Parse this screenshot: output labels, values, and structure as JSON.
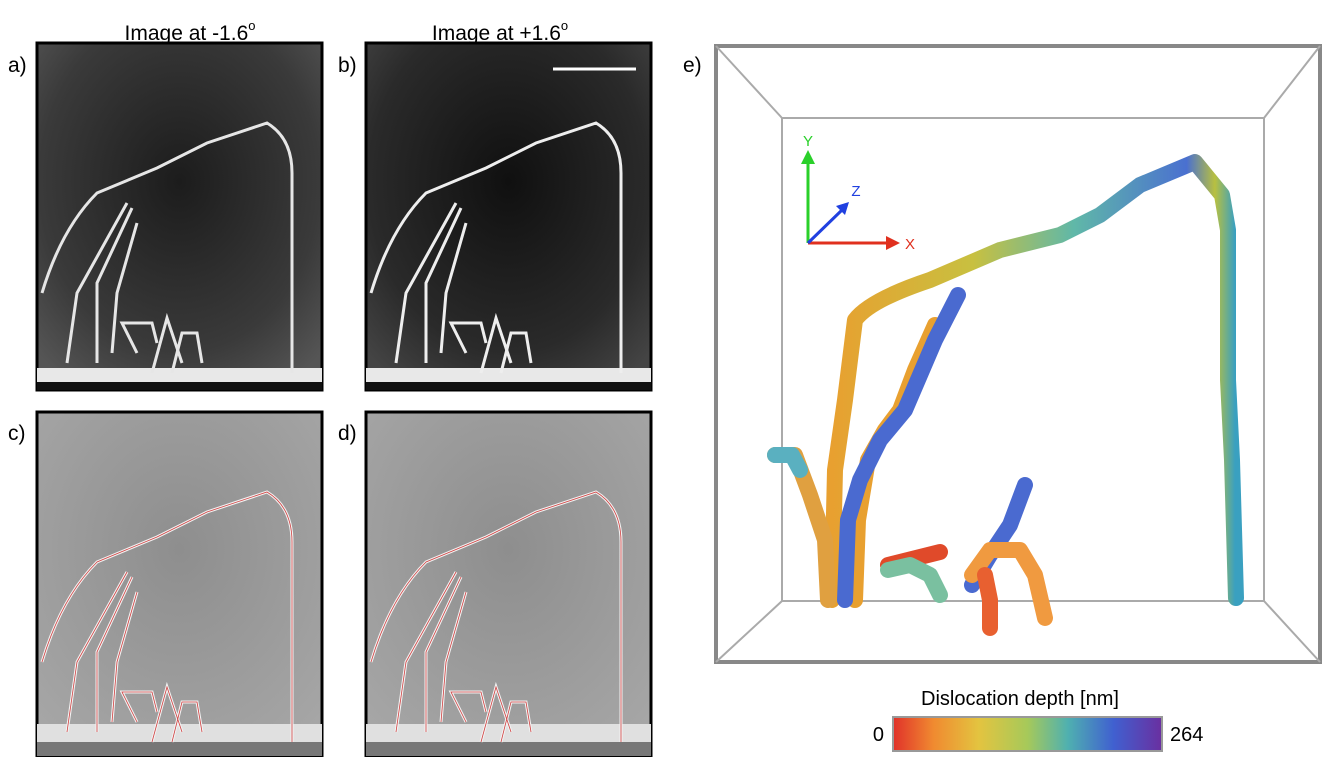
{
  "panels": [
    {
      "label": "a)",
      "title": {
        "text": "Image at -1.6",
        "sup": "o"
      }
    },
    {
      "label": "b)",
      "title": {
        "text": "Image at +1.6",
        "sup": "o"
      }
    },
    {
      "label": "c)"
    },
    {
      "label": "d)"
    },
    {
      "label": "e)",
      "axes": {
        "x": "X",
        "y": "Y",
        "z": "Z"
      }
    }
  ],
  "colorbar": {
    "label": "Dislocation depth [nm]",
    "min": 0,
    "max": 264
  }
}
